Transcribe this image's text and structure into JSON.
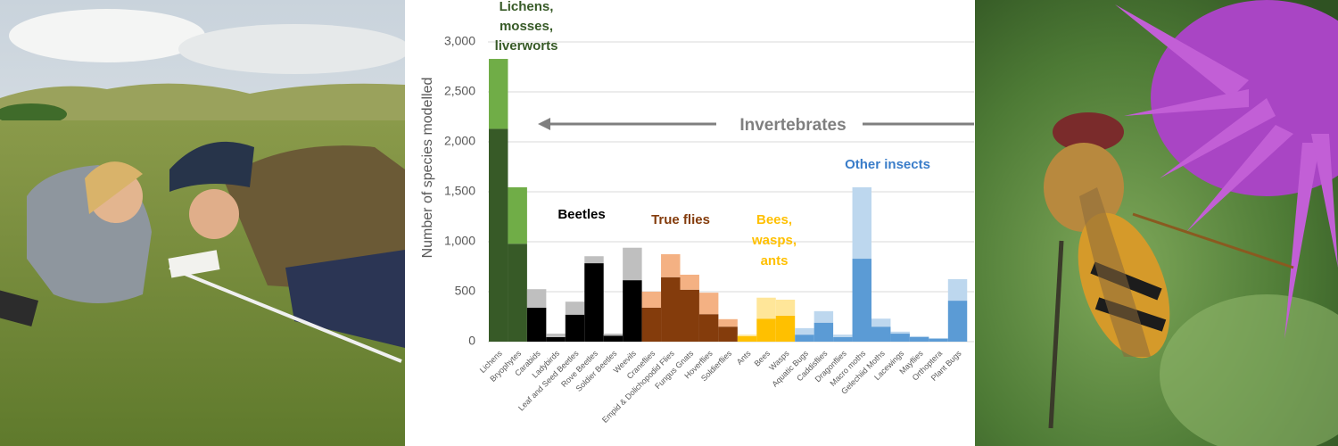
{
  "chart_data": {
    "type": "bar",
    "stacked": true,
    "y_label": "Number of species modelled",
    "categories": [
      "Lichens",
      "Bryophytes",
      "Carabids",
      "Ladybirds",
      "Leaf and Seed Beetles",
      "Rove Beetles",
      "Soldier Beetles",
      "Weevils",
      "Craneflies",
      "Empid & Dolichopodid Flies",
      "Fungus Gnats",
      "Hoverflies",
      "Soldierflies",
      "Ants",
      "Bees",
      "Wasps",
      "Aquatic Bugs",
      "Caddisflies",
      "Dragonflies",
      "Macro moths",
      "Gelechiid Moths",
      "Lacewings",
      "Mayflies",
      "Orthoptera",
      "Plant Bugs"
    ],
    "series": [
      {
        "values": [
          2130,
          980,
          340,
          45,
          270,
          785,
          60,
          615,
          340,
          645,
          520,
          275,
          150,
          55,
          230,
          260,
          70,
          190,
          45,
          830,
          150,
          80,
          45,
          30,
          410
        ],
        "colors": [
          "#375a27",
          "#375a27",
          "#000000",
          "#000000",
          "#000000",
          "#000000",
          "#000000",
          "#000000",
          "#843c0c",
          "#843c0c",
          "#843c0c",
          "#843c0c",
          "#843c0c",
          "#ffc000",
          "#ffc000",
          "#ffc000",
          "#5b9bd5",
          "#5b9bd5",
          "#5b9bd5",
          "#5b9bd5",
          "#5b9bd5",
          "#5b9bd5",
          "#5b9bd5",
          "#5b9bd5",
          "#5b9bd5"
        ]
      },
      {
        "values": [
          700,
          565,
          185,
          35,
          130,
          70,
          20,
          325,
          160,
          230,
          150,
          215,
          75,
          15,
          210,
          160,
          65,
          115,
          25,
          715,
          80,
          20,
          10,
          5,
          215
        ],
        "colors": [
          "#70ad47",
          "#70ad47",
          "#bfbfbf",
          "#bfbfbf",
          "#bfbfbf",
          "#bfbfbf",
          "#bfbfbf",
          "#bfbfbf",
          "#f4b183",
          "#f4b183",
          "#f4b183",
          "#f4b183",
          "#f4b183",
          "#ffe699",
          "#ffe699",
          "#ffe699",
          "#bdd7ee",
          "#bdd7ee",
          "#bdd7ee",
          "#bdd7ee",
          "#bdd7ee",
          "#bdd7ee",
          "#bdd7ee",
          "#bdd7ee",
          "#bdd7ee"
        ]
      }
    ],
    "ylim": [
      0,
      3000
    ],
    "yticks": [
      0,
      {
        "value": 500,
        "label": "500"
      },
      {
        "value": 1000,
        "label": "1,000"
      },
      {
        "value": 1500,
        "label": "1,500"
      },
      {
        "value": 2000,
        "label": "2,000"
      },
      {
        "value": 2500,
        "label": "2,500"
      },
      {
        "value": 3000,
        "label": "3,000"
      }
    ],
    "grid": true,
    "annotations": [
      {
        "lines": [
          "Lichens,",
          "mosses,",
          "liverworts"
        ],
        "color": "#375a27"
      },
      {
        "lines": [
          "Beetles"
        ],
        "color": "#000000"
      },
      {
        "lines": [
          "True flies"
        ],
        "color": "#843c0c"
      },
      {
        "lines": [
          "Bees,",
          "wasps,",
          "ants"
        ],
        "color": "#ffc000"
      },
      {
        "lines": [
          "Other insects"
        ],
        "color": "#3a7dc9"
      }
    ],
    "span_label": "Invertebrates"
  }
}
